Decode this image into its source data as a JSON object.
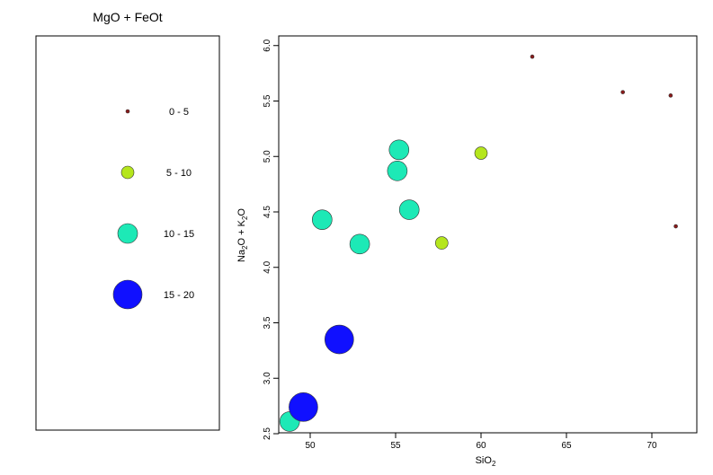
{
  "legend": {
    "title": "MgO + FeOt",
    "entries": [
      {
        "label": "0 - 5",
        "color": "#8b1a1a",
        "size": 2
      },
      {
        "label": "5 - 10",
        "color": "#b5e61d",
        "size": 7
      },
      {
        "label": "10 - 15",
        "color": "#1de9b6",
        "size": 11
      },
      {
        "label": "15 - 20",
        "color": "#1010ff",
        "size": 16
      }
    ]
  },
  "chart_data": {
    "type": "scatter",
    "xlabel": "SiO2",
    "ylabel": "Na2O + K2O",
    "xlim": [
      48,
      73
    ],
    "ylim": [
      2.5,
      6.0
    ],
    "xticks": [
      50,
      55,
      60,
      65,
      70
    ],
    "yticks": [
      2.5,
      3.0,
      3.5,
      4.0,
      4.5,
      5.0,
      5.5,
      6.0
    ],
    "grid": false,
    "legend_placement": "left-panel",
    "points": [
      {
        "x": 48.8,
        "y": 2.61,
        "class": "10 - 15"
      },
      {
        "x": 49.6,
        "y": 2.74,
        "class": "15 - 20"
      },
      {
        "x": 51.7,
        "y": 3.35,
        "class": "15 - 20"
      },
      {
        "x": 50.7,
        "y": 4.43,
        "class": "10 - 15"
      },
      {
        "x": 52.9,
        "y": 4.21,
        "class": "10 - 15"
      },
      {
        "x": 55.1,
        "y": 4.87,
        "class": "10 - 15"
      },
      {
        "x": 55.2,
        "y": 5.06,
        "class": "10 - 15"
      },
      {
        "x": 55.8,
        "y": 4.52,
        "class": "10 - 15"
      },
      {
        "x": 57.7,
        "y": 4.22,
        "class": "5 - 10"
      },
      {
        "x": 60.0,
        "y": 5.03,
        "class": "5 - 10"
      },
      {
        "x": 63.0,
        "y": 5.9,
        "class": "0 - 5"
      },
      {
        "x": 68.3,
        "y": 5.58,
        "class": "0 - 5"
      },
      {
        "x": 71.1,
        "y": 5.55,
        "class": "0 - 5"
      },
      {
        "x": 71.4,
        "y": 4.37,
        "class": "0 - 5"
      }
    ]
  }
}
